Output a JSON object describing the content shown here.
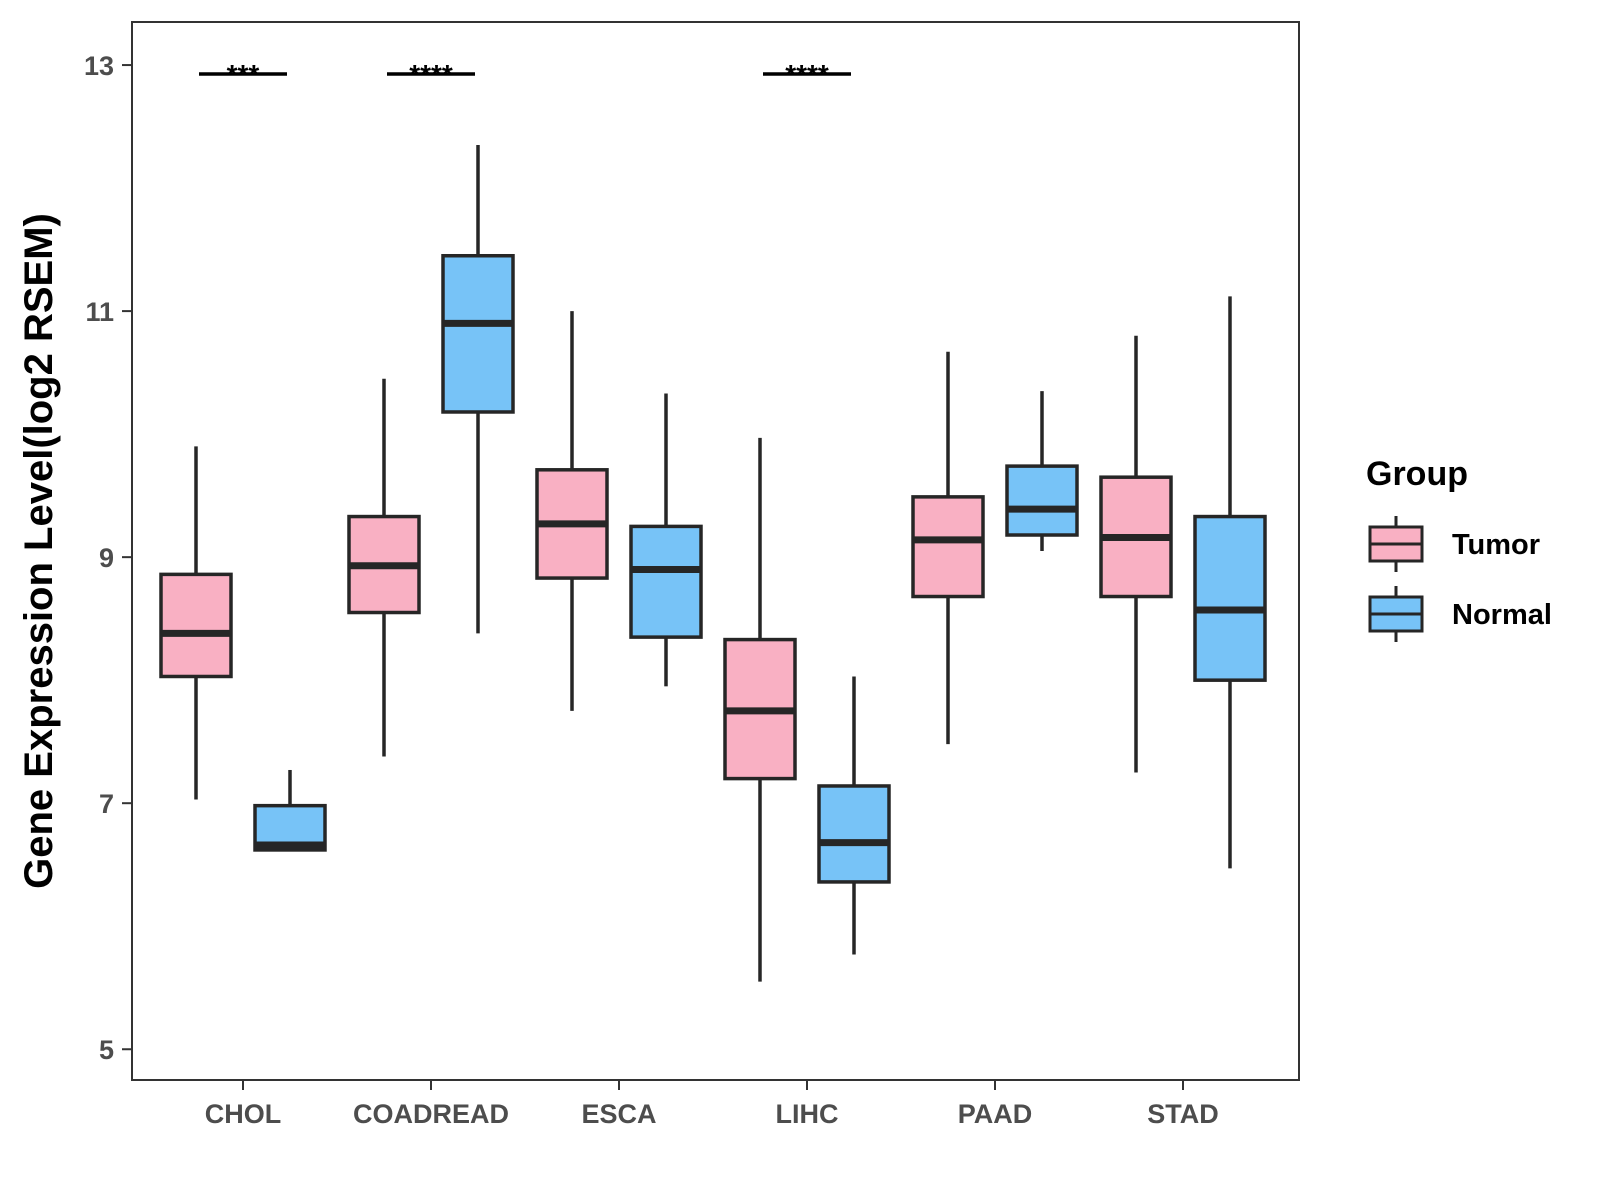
{
  "chart_data": {
    "type": "boxplot",
    "title": "",
    "xlabel": "",
    "ylabel": "Gene Expression Level(log2 RSEM)",
    "ylim": [
      4.75,
      13.35
    ],
    "yticks": [
      5,
      7,
      9,
      11,
      13
    ],
    "categories": [
      "CHOL",
      "COADREAD",
      "ESCA",
      "LIHC",
      "PAAD",
      "STAD"
    ],
    "legend": {
      "title": "Group",
      "position": "right",
      "entries": [
        {
          "name": "Tumor",
          "color": "#F9B0C3"
        },
        {
          "name": "Normal",
          "color": "#77C3F7"
        }
      ]
    },
    "series": [
      {
        "name": "Tumor",
        "color": "#F9B0C3",
        "boxes": [
          {
            "min": 7.03,
            "q1": 8.03,
            "median": 8.38,
            "q3": 8.86,
            "max": 9.9
          },
          {
            "min": 7.38,
            "q1": 8.55,
            "median": 8.93,
            "q3": 9.33,
            "max": 10.45
          },
          {
            "min": 7.75,
            "q1": 8.83,
            "median": 9.27,
            "q3": 9.71,
            "max": 11.0
          },
          {
            "min": 5.55,
            "q1": 7.2,
            "median": 7.75,
            "q3": 8.33,
            "max": 9.97
          },
          {
            "min": 7.48,
            "q1": 8.68,
            "median": 9.14,
            "q3": 9.49,
            "max": 10.67
          },
          {
            "min": 7.25,
            "q1": 8.68,
            "median": 9.16,
            "q3": 9.65,
            "max": 10.8
          }
        ]
      },
      {
        "name": "Normal",
        "color": "#77C3F7",
        "boxes": [
          {
            "min": 6.62,
            "q1": 6.62,
            "median": 6.66,
            "q3": 6.98,
            "max": 7.27
          },
          {
            "min": 8.38,
            "q1": 10.18,
            "median": 10.9,
            "q3": 11.45,
            "max": 12.35
          },
          {
            "min": 7.95,
            "q1": 8.35,
            "median": 8.9,
            "q3": 9.25,
            "max": 10.33
          },
          {
            "min": 5.77,
            "q1": 6.36,
            "median": 6.68,
            "q3": 7.14,
            "max": 8.03
          },
          {
            "min": 9.05,
            "q1": 9.18,
            "median": 9.39,
            "q3": 9.74,
            "max": 10.35
          },
          {
            "min": 6.47,
            "q1": 8.0,
            "median": 8.57,
            "q3": 9.33,
            "max": 11.12
          }
        ]
      }
    ],
    "annotations": [
      {
        "category": "CHOL",
        "label": "***"
      },
      {
        "category": "COADREAD",
        "label": "****"
      },
      {
        "category": "LIHC",
        "label": "****"
      }
    ]
  }
}
